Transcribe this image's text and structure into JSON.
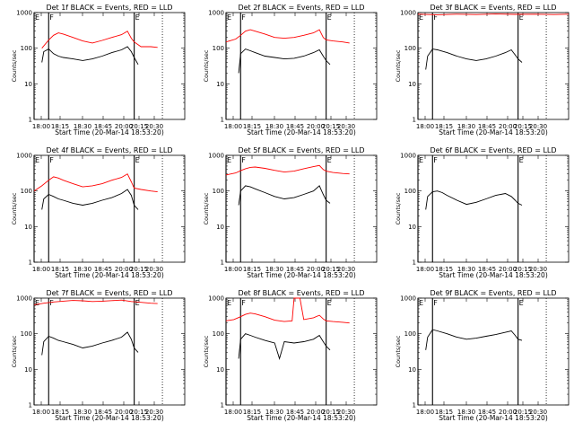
{
  "figure": {
    "background": "#ffffff",
    "colors": {
      "events": "#000000",
      "lld": "#ff0000",
      "axes": "#000000"
    }
  },
  "chart_data": [
    {
      "type": "line",
      "title": "Det 1f BLACK = Events, RED = LLD",
      "xlabel": "Start Time (20-Mar-14 18:53:20)",
      "ylabel": "Counts/sec",
      "x_tick_labels": [
        "18:00",
        "18:15",
        "18:30",
        "18:45",
        "20:00",
        "20:15",
        "20:30"
      ],
      "y_tick_labels": [
        "1",
        "10",
        "100",
        "1000"
      ],
      "y_scale": "log",
      "ylim": [
        1,
        1000
      ],
      "x_range_min": [
        0,
        155
      ],
      "markers": [
        {
          "label": "E",
          "x": 0
        },
        {
          "label": "F",
          "x": 15
        },
        {
          "label": "E",
          "x": 103
        }
      ],
      "dotted_x": [
        132
      ],
      "series": [
        {
          "name": "Events",
          "color": "#000000",
          "x": [
            8,
            10,
            15,
            20,
            25,
            30,
            40,
            50,
            60,
            70,
            80,
            90,
            96,
            100,
            103,
            107
          ],
          "y": [
            40,
            80,
            95,
            70,
            60,
            55,
            50,
            45,
            50,
            60,
            75,
            90,
            110,
            80,
            55,
            35
          ]
        },
        {
          "name": "LLD",
          "color": "#ff0000",
          "x": [
            8,
            15,
            20,
            25,
            30,
            40,
            50,
            60,
            70,
            80,
            90,
            96,
            100,
            103,
            110,
            120,
            127
          ],
          "y": [
            100,
            170,
            230,
            270,
            250,
            200,
            160,
            140,
            165,
            200,
            240,
            300,
            190,
            150,
            110,
            110,
            105
          ]
        }
      ]
    },
    {
      "type": "line",
      "title": "Det 2f BLACK = Events, RED = LLD",
      "xlabel": "Start Time (20-Mar-14 18:53:20)",
      "ylabel": "Counts/sec",
      "x_tick_labels": [
        "18:00",
        "18:15",
        "18:30",
        "18:45",
        "20:00",
        "20:15",
        "20:30"
      ],
      "y_tick_labels": [
        "1",
        "10",
        "100",
        "1000"
      ],
      "y_scale": "log",
      "ylim": [
        1,
        1000
      ],
      "x_range_min": [
        0,
        155
      ],
      "markers": [
        {
          "label": "E",
          "x": 0
        },
        {
          "label": "F",
          "x": 15
        },
        {
          "label": "E",
          "x": 103
        }
      ],
      "dotted_x": [
        132
      ],
      "series": [
        {
          "name": "Events",
          "color": "#000000",
          "x": [
            13,
            15,
            20,
            25,
            30,
            40,
            50,
            60,
            70,
            80,
            90,
            96,
            100,
            103,
            107
          ],
          "y": [
            20,
            70,
            95,
            85,
            75,
            60,
            55,
            50,
            52,
            60,
            75,
            90,
            60,
            45,
            35
          ]
        },
        {
          "name": "LLD",
          "color": "#ff0000",
          "x": [
            0,
            10,
            15,
            20,
            25,
            30,
            40,
            50,
            60,
            70,
            80,
            90,
            96,
            100,
            103,
            110,
            120,
            127
          ],
          "y": [
            150,
            180,
            230,
            300,
            330,
            300,
            250,
            200,
            190,
            200,
            230,
            270,
            330,
            200,
            170,
            160,
            150,
            140
          ]
        }
      ]
    },
    {
      "type": "line",
      "title": "Det 3f BLACK = Events, RED = LLD",
      "xlabel": "Start Time (20-Mar-14 18:53:20)",
      "ylabel": "Counts/sec",
      "x_tick_labels": [
        "18:00",
        "18:15",
        "18:30",
        "18:45",
        "20:00",
        "20:15",
        "20:30"
      ],
      "y_tick_labels": [
        "1",
        "10",
        "100",
        "1000"
      ],
      "y_scale": "log",
      "ylim": [
        1,
        1000
      ],
      "x_range_min": [
        0,
        155
      ],
      "markers": [
        {
          "label": "E",
          "x": 0
        },
        {
          "label": "F",
          "x": 15
        },
        {
          "label": "E",
          "x": 103
        }
      ],
      "dotted_x": [
        132
      ],
      "series": [
        {
          "name": "Events",
          "color": "#000000",
          "x": [
            8,
            10,
            15,
            20,
            30,
            40,
            50,
            60,
            70,
            80,
            90,
            96,
            100,
            103,
            107
          ],
          "y": [
            25,
            60,
            95,
            90,
            75,
            60,
            50,
            45,
            50,
            60,
            75,
            90,
            65,
            50,
            40
          ]
        },
        {
          "name": "LLD",
          "color": "#ff0000",
          "x": [
            0,
            20,
            40,
            60,
            80,
            100,
            120,
            140,
            155
          ],
          "y": [
            900,
            870,
            900,
            880,
            910,
            890,
            900,
            880,
            900
          ]
        }
      ]
    },
    {
      "type": "line",
      "title": "Det 4f BLACK = Events, RED = LLD",
      "xlabel": "Start Time (20-Mar-14 18:53:20)",
      "ylabel": "Counts/sec",
      "x_tick_labels": [
        "18:00",
        "18:15",
        "18:30",
        "18:45",
        "20:00",
        "20:15",
        "20:30"
      ],
      "y_tick_labels": [
        "1",
        "10",
        "100",
        "1000"
      ],
      "y_scale": "log",
      "ylim": [
        1,
        1000
      ],
      "x_range_min": [
        0,
        155
      ],
      "markers": [
        {
          "label": "E",
          "x": 0
        },
        {
          "label": "F",
          "x": 15
        },
        {
          "label": "E",
          "x": 103
        }
      ],
      "dotted_x": [
        132
      ],
      "series": [
        {
          "name": "Events",
          "color": "#000000",
          "x": [
            8,
            10,
            15,
            20,
            25,
            30,
            40,
            50,
            60,
            70,
            80,
            90,
            96,
            100,
            103,
            107
          ],
          "y": [
            30,
            60,
            80,
            70,
            60,
            55,
            45,
            40,
            45,
            55,
            65,
            85,
            110,
            75,
            40,
            30
          ]
        },
        {
          "name": "LLD",
          "color": "#ff0000",
          "x": [
            0,
            8,
            15,
            20,
            25,
            30,
            40,
            50,
            60,
            70,
            80,
            90,
            96,
            100,
            103,
            110,
            120,
            127
          ],
          "y": [
            100,
            140,
            200,
            250,
            230,
            200,
            160,
            130,
            140,
            160,
            200,
            240,
            300,
            180,
            120,
            110,
            100,
            95
          ]
        }
      ]
    },
    {
      "type": "line",
      "title": "Det 5f BLACK = Events, RED = LLD",
      "xlabel": "Start Time (20-Mar-14 18:53:20)",
      "ylabel": "Counts/sec",
      "x_tick_labels": [
        "18:00",
        "18:15",
        "18:30",
        "18:45",
        "20:00",
        "20:15",
        "20:30"
      ],
      "y_tick_labels": [
        "1",
        "10",
        "100",
        "1000"
      ],
      "y_scale": "log",
      "ylim": [
        1,
        1000
      ],
      "x_range_min": [
        0,
        155
      ],
      "markers": [
        {
          "label": "E",
          "x": 0
        },
        {
          "label": "F",
          "x": 15
        },
        {
          "label": "E",
          "x": 103
        }
      ],
      "dotted_x": [
        132
      ],
      "series": [
        {
          "name": "Events",
          "color": "#000000",
          "x": [
            13,
            15,
            20,
            25,
            30,
            40,
            50,
            60,
            70,
            80,
            90,
            96,
            100,
            103,
            107
          ],
          "y": [
            40,
            100,
            140,
            130,
            115,
            90,
            70,
            60,
            65,
            80,
            100,
            140,
            80,
            55,
            45
          ]
        },
        {
          "name": "LLD",
          "color": "#ff0000",
          "x": [
            0,
            10,
            15,
            20,
            25,
            30,
            40,
            50,
            60,
            70,
            80,
            90,
            96,
            100,
            103,
            110,
            120,
            127
          ],
          "y": [
            280,
            320,
            370,
            420,
            460,
            470,
            430,
            380,
            340,
            360,
            420,
            480,
            520,
            400,
            360,
            330,
            310,
            300
          ]
        }
      ]
    },
    {
      "type": "line",
      "title": "Det 6f BLACK = Events, RED = LLD",
      "xlabel": "Start Time (20-Mar-14 18:53:20)",
      "ylabel": "Counts/sec",
      "x_tick_labels": [
        "18:00",
        "18:15",
        "18:30",
        "18:45",
        "20:00",
        "20:15",
        "20:30"
      ],
      "y_tick_labels": [
        "1",
        "10",
        "100",
        "1000"
      ],
      "y_scale": "log",
      "ylim": [
        1,
        1000
      ],
      "x_range_min": [
        0,
        155
      ],
      "markers": [
        {
          "label": "E",
          "x": 0
        },
        {
          "label": "F",
          "x": 15
        },
        {
          "label": "E",
          "x": 103
        }
      ],
      "dotted_x": [
        132
      ],
      "series": [
        {
          "name": "Events",
          "color": "#000000",
          "x": [
            8,
            10,
            15,
            20,
            25,
            30,
            40,
            50,
            60,
            70,
            80,
            90,
            96,
            100,
            103,
            107
          ],
          "y": [
            30,
            70,
            95,
            100,
            90,
            75,
            55,
            42,
            48,
            60,
            75,
            85,
            70,
            55,
            45,
            40
          ]
        }
      ]
    },
    {
      "type": "line",
      "title": "Det 7f BLACK = Events, RED = LLD",
      "xlabel": "Start Time (20-Mar-14 18:53:20)",
      "ylabel": "Counts/sec",
      "x_tick_labels": [
        "18:00",
        "18:15",
        "18:30",
        "18:45",
        "20:00",
        "20:15",
        "20:30"
      ],
      "y_tick_labels": [
        "1",
        "10",
        "100",
        "1000"
      ],
      "y_scale": "log",
      "ylim": [
        1,
        1000
      ],
      "x_range_min": [
        0,
        155
      ],
      "markers": [
        {
          "label": "E",
          "x": 0
        },
        {
          "label": "F",
          "x": 15
        },
        {
          "label": "E",
          "x": 103
        }
      ],
      "dotted_x": [
        132
      ],
      "series": [
        {
          "name": "Events",
          "color": "#000000",
          "x": [
            8,
            10,
            15,
            20,
            25,
            30,
            40,
            50,
            60,
            70,
            80,
            90,
            96,
            100,
            103,
            107
          ],
          "y": [
            25,
            60,
            85,
            75,
            65,
            60,
            50,
            40,
            45,
            55,
            65,
            80,
            110,
            70,
            40,
            30
          ]
        },
        {
          "name": "LLD",
          "color": "#ff0000",
          "x": [
            0,
            10,
            20,
            30,
            40,
            50,
            60,
            70,
            80,
            90,
            100,
            110,
            120,
            127
          ],
          "y": [
            650,
            720,
            780,
            820,
            860,
            840,
            800,
            820,
            850,
            880,
            800,
            760,
            720,
            700
          ]
        }
      ]
    },
    {
      "type": "line",
      "title": "Det 8f BLACK = Events, RED = LLD",
      "xlabel": "Start Time (20-Mar-14 18:53:20)",
      "ylabel": "Counts/sec",
      "x_tick_labels": [
        "18:00",
        "18:15",
        "18:30",
        "18:45",
        "20:00",
        "20:15",
        "20:30"
      ],
      "y_tick_labels": [
        "1",
        "10",
        "100",
        "1000"
      ],
      "y_scale": "log",
      "ylim": [
        1,
        1000
      ],
      "x_range_min": [
        0,
        155
      ],
      "markers": [
        {
          "label": "E",
          "x": 0
        },
        {
          "label": "F",
          "x": 15
        },
        {
          "label": "E",
          "x": 103
        }
      ],
      "dotted_x": [
        132
      ],
      "series": [
        {
          "name": "Events",
          "color": "#000000",
          "x": [
            13,
            15,
            20,
            25,
            30,
            40,
            50,
            55,
            60,
            70,
            80,
            90,
            96,
            100,
            103,
            107
          ],
          "y": [
            20,
            70,
            100,
            90,
            80,
            65,
            55,
            20,
            60,
            55,
            60,
            70,
            90,
            60,
            45,
            35
          ]
        },
        {
          "name": "LLD",
          "color": "#ff0000",
          "x": [
            0,
            8,
            15,
            20,
            25,
            30,
            40,
            50,
            60,
            68,
            70,
            72,
            76,
            80,
            90,
            96,
            100,
            103,
            110,
            120,
            127
          ],
          "y": [
            230,
            250,
            300,
            350,
            380,
            360,
            300,
            240,
            220,
            230,
            1000,
            1000,
            1000,
            250,
            280,
            330,
            260,
            230,
            220,
            210,
            200
          ]
        }
      ]
    },
    {
      "type": "line",
      "title": "Det 9f BLACK = Events, RED = LLD",
      "xlabel": "Start Time (20-Mar-14 18:53:20)",
      "ylabel": "Counts/sec",
      "x_tick_labels": [
        "18:00",
        "18:15",
        "18:30",
        "18:45",
        "20:00",
        "20:15",
        "20:30"
      ],
      "y_tick_labels": [
        "1",
        "10",
        "100",
        "1000"
      ],
      "y_scale": "log",
      "ylim": [
        1,
        1000
      ],
      "x_range_min": [
        0,
        155
      ],
      "markers": [
        {
          "label": "E",
          "x": 0
        },
        {
          "label": "F",
          "x": 15
        },
        {
          "label": "E",
          "x": 103
        }
      ],
      "dotted_x": [
        132
      ],
      "series": [
        {
          "name": "Events",
          "color": "#000000",
          "x": [
            8,
            10,
            15,
            20,
            30,
            40,
            50,
            60,
            70,
            80,
            90,
            96,
            100,
            103,
            107
          ],
          "y": [
            35,
            80,
            130,
            120,
            100,
            80,
            70,
            75,
            85,
            95,
            110,
            120,
            90,
            70,
            65
          ]
        }
      ]
    }
  ]
}
